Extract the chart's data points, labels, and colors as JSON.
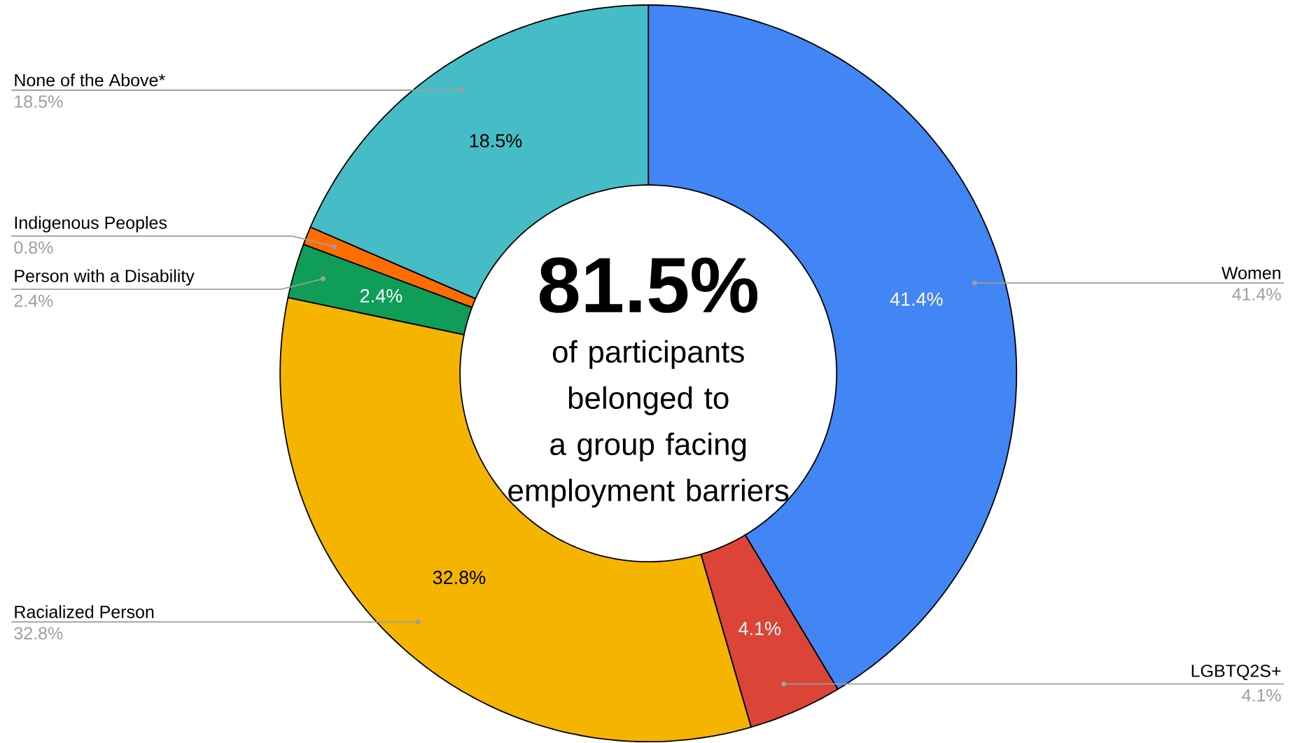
{
  "chart_data": {
    "type": "donut",
    "categories": [
      "Women",
      "LGBTQ2S+",
      "Racialized Person",
      "Person with a Disability",
      "Indigenous Peoples",
      "None of the Above*"
    ],
    "values": [
      41.4,
      4.1,
      32.8,
      2.4,
      0.8,
      18.5
    ],
    "value_labels": [
      "41.4%",
      "4.1%",
      "32.8%",
      "2.4%",
      "0.8%",
      "18.5%"
    ],
    "colors": [
      "#4285f4",
      "#db4437",
      "#f4b400",
      "#0f9d58",
      "#ff6d01",
      "#46bdc6"
    ],
    "annotations": [
      "81.5%",
      "of participants belonged to a group facing employment barriers"
    ]
  }
}
